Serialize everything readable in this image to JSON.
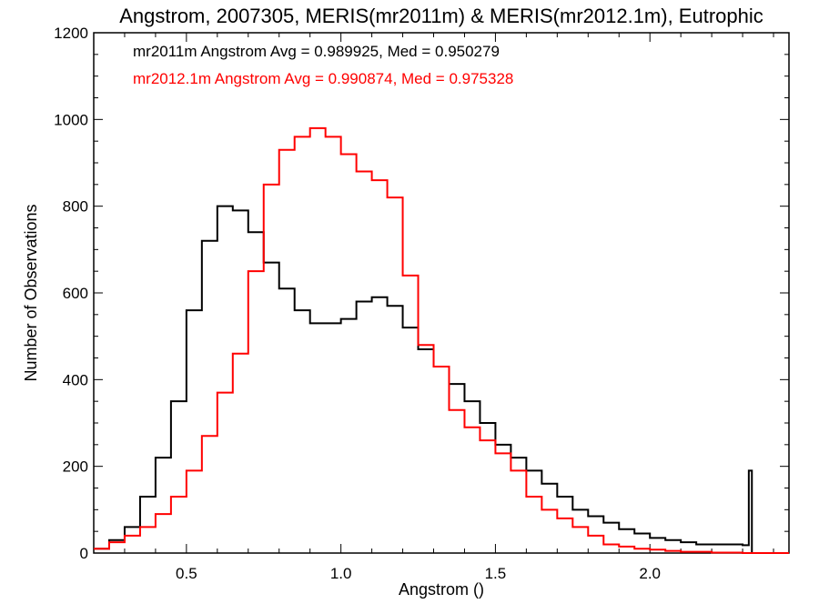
{
  "chart_data": {
    "type": "line",
    "title": "Angstrom, 2007305, MERIS(mr2011m) & MERIS(mr2012.1m), Eutrophic",
    "xlabel": "Angstrom ()",
    "ylabel": "Number of Observations",
    "xlim": [
      0.2,
      2.45
    ],
    "ylim": [
      0,
      1200
    ],
    "xticks": [
      0.5,
      1.0,
      1.5,
      2.0
    ],
    "xtick_labels": [
      "0.5",
      "1.0",
      "1.5",
      "2.0"
    ],
    "yticks": [
      0,
      200,
      400,
      600,
      800,
      1000,
      1200
    ],
    "ytick_labels": [
      "0",
      "200",
      "400",
      "600",
      "800",
      "1000",
      "1200"
    ],
    "grid": false,
    "legend_position": "top-left",
    "series": [
      {
        "name": "mr2011m",
        "color": "#000000",
        "annotation": "mr2011m Angstrom Avg = 0.989925, Med = 0.950279",
        "x": [
          0.2,
          0.25,
          0.3,
          0.35,
          0.4,
          0.45,
          0.5,
          0.55,
          0.6,
          0.65,
          0.7,
          0.75,
          0.8,
          0.85,
          0.9,
          0.95,
          1.0,
          1.05,
          1.1,
          1.15,
          1.2,
          1.25,
          1.3,
          1.35,
          1.4,
          1.45,
          1.5,
          1.55,
          1.6,
          1.65,
          1.7,
          1.75,
          1.8,
          1.85,
          1.9,
          1.95,
          2.0,
          2.05,
          2.1,
          2.15,
          2.2,
          2.25,
          2.3,
          2.32,
          2.33,
          2.34,
          2.45
        ],
        "y": [
          10,
          30,
          60,
          130,
          220,
          350,
          560,
          720,
          800,
          790,
          740,
          670,
          610,
          560,
          530,
          530,
          540,
          580,
          590,
          570,
          520,
          470,
          430,
          390,
          350,
          300,
          250,
          220,
          190,
          160,
          130,
          100,
          85,
          70,
          55,
          45,
          35,
          30,
          25,
          20,
          20,
          20,
          18,
          190,
          0,
          0,
          0
        ]
      },
      {
        "name": "mr2012.1m",
        "color": "#ff0000",
        "annotation": "mr2012.1m Angstrom Avg = 0.990874, Med = 0.975328",
        "x": [
          0.2,
          0.25,
          0.3,
          0.35,
          0.4,
          0.45,
          0.5,
          0.55,
          0.6,
          0.65,
          0.7,
          0.75,
          0.8,
          0.85,
          0.9,
          0.95,
          1.0,
          1.05,
          1.1,
          1.15,
          1.2,
          1.25,
          1.3,
          1.35,
          1.4,
          1.45,
          1.5,
          1.55,
          1.6,
          1.65,
          1.7,
          1.75,
          1.8,
          1.85,
          1.9,
          1.95,
          2.0,
          2.05,
          2.1,
          2.2,
          2.3,
          2.45
        ],
        "y": [
          10,
          25,
          40,
          60,
          90,
          130,
          190,
          270,
          370,
          460,
          650,
          850,
          930,
          960,
          980,
          960,
          920,
          880,
          860,
          820,
          640,
          480,
          430,
          330,
          290,
          260,
          230,
          190,
          130,
          100,
          80,
          60,
          40,
          20,
          15,
          10,
          8,
          5,
          3,
          1,
          0,
          0
        ]
      }
    ]
  }
}
